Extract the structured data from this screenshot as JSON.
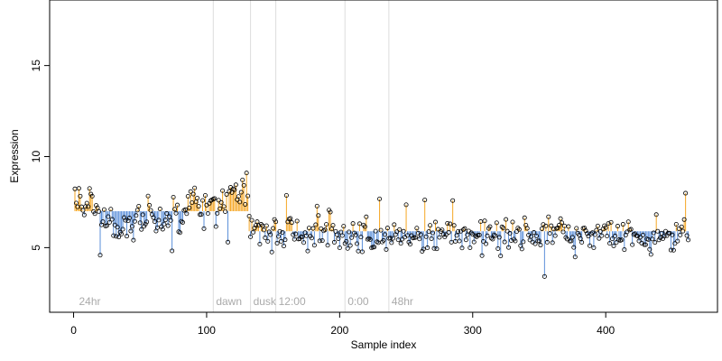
{
  "chart_data": {
    "type": "scatter",
    "title": "",
    "xlabel": "Sample index",
    "ylabel": "Expression",
    "xlim": [
      -18,
      484
    ],
    "ylim": [
      1.45,
      18.6
    ],
    "x_ticks": [
      0,
      100,
      200,
      300,
      400
    ],
    "y_ticks": [
      5,
      10,
      15
    ],
    "grid": false,
    "legend": "none",
    "baseline": {
      "segments": [
        {
          "x0": 1,
          "x1": 131,
          "y": 7.0
        },
        {
          "x0": 133,
          "x1": 462,
          "y": 5.9
        }
      ]
    },
    "markers": [
      {
        "x": 105,
        "label": "dawn"
      },
      {
        "x": 133,
        "label": "dusk"
      },
      {
        "x": 152,
        "label": "12:00"
      },
      {
        "x": 204,
        "label": "0:00"
      },
      {
        "x": 237,
        "label": "48hr"
      }
    ],
    "corner_label": {
      "x": 2,
      "label": "24hr"
    },
    "colors": {
      "above": "#F5A623",
      "below": "#5B8FD9",
      "reference": "#dddddd",
      "annotation": "#aaaaaa",
      "point_edge": "#000000"
    },
    "seed": 20240611,
    "n_points": 462
  }
}
